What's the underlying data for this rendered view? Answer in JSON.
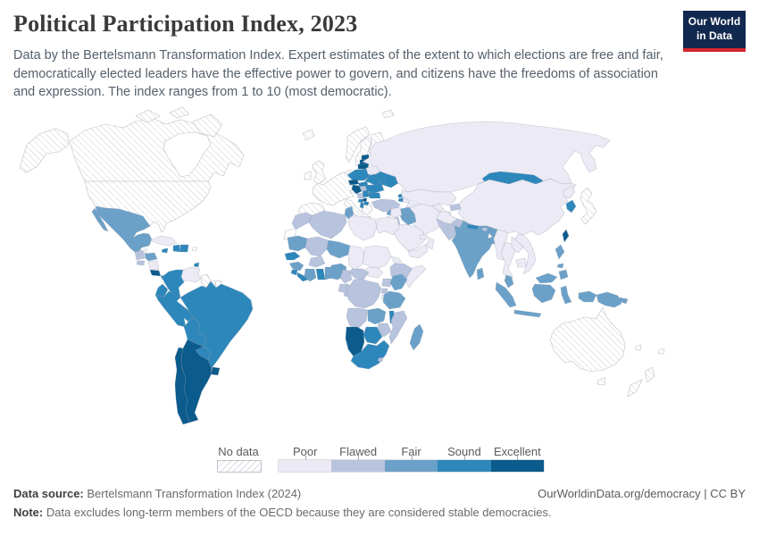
{
  "header": {
    "title": "Political Participation Index, 2023",
    "subtitle": "Data by the Bertelsmann Transformation Index. Expert estimates of the extent to which elections are free and fair, democratically elected leaders have the effective power to govern, and citizens have the freedoms of association and expression. The index ranges from 1 to 10 (most democratic).",
    "logo": {
      "line1": "Our World",
      "line2": "in Data",
      "bg_color": "#12294f",
      "accent_color": "#d2262f"
    }
  },
  "legend": {
    "no_data_label": "No data",
    "classes": [
      {
        "label": "Poor",
        "key": "poor",
        "color": "#ECEAF4"
      },
      {
        "label": "Flawed",
        "key": "flawed",
        "color": "#B8C3DE"
      },
      {
        "label": "Fair",
        "key": "fair",
        "color": "#6BA1C9"
      },
      {
        "label": "Sound",
        "key": "sound",
        "color": "#2D87BB"
      },
      {
        "label": "Excellent",
        "key": "excellent",
        "color": "#0B5B8C"
      }
    ]
  },
  "footer": {
    "source_label": "Data source:",
    "source_text": " Bertelsmann Transformation Index (2024)",
    "note_label": "Note:",
    "note_text": " Data excludes long-term members of the OECD because they are considered stable democracies.",
    "link_text": "OurWorldinData.org/democracy",
    "separator": " | ",
    "license_text": "CC BY"
  },
  "chart_data": {
    "type": "choropleth",
    "title": "Political Participation Index, 2023",
    "year": 2023,
    "index_range": [
      1,
      10
    ],
    "categories": [
      "No data",
      "Poor",
      "Flawed",
      "Fair",
      "Sound",
      "Excellent"
    ],
    "legend_position": "bottom",
    "countries": {
      "United States": "no_data",
      "Canada": "no_data",
      "Greenland": "no_data",
      "Iceland": "no_data",
      "United Kingdom": "no_data",
      "Ireland": "no_data",
      "Norway": "no_data",
      "Sweden": "no_data",
      "Finland": "no_data",
      "Denmark": "no_data",
      "France": "no_data",
      "Germany": "no_data",
      "Spain": "no_data",
      "Portugal": "no_data",
      "Italy": "no_data",
      "Greece": "no_data",
      "Switzerland": "no_data",
      "Austria": "no_data",
      "Belgium": "no_data",
      "Netherlands": "no_data",
      "Slovenia": "no_data",
      "Israel": "no_data",
      "Japan": "no_data",
      "Australia": "no_data",
      "New Zealand": "no_data",
      "Guyana": "no_data",
      "Suriname": "no_data",
      "French Guiana": "no_data",
      "Puerto Rico": "no_data",
      "Western Sahara": "no_data",
      "Belize": "no_data",
      "Fiji": "no_data",
      "New Caledonia": "no_data",
      "Russia": "poor",
      "Belarus": "poor",
      "China": "poor",
      "North Korea": "poor",
      "Venezuela": "poor",
      "Cuba": "poor",
      "Nicaragua": "poor",
      "Libya": "poor",
      "Egypt": "poor",
      "Chad": "poor",
      "Sudan": "poor",
      "South Sudan": "poor",
      "Eritrea": "poor",
      "Somalia": "poor",
      "Burundi": "poor",
      "Saudi Arabia": "poor",
      "Yemen": "poor",
      "Oman": "poor",
      "United Arab Emirates": "poor",
      "Iran": "poor",
      "Syria": "poor",
      "Afghanistan": "poor",
      "Kazakhstan": "poor",
      "Uzbekistan": "poor",
      "Turkmenistan": "poor",
      "Tajikistan": "poor",
      "Myanmar": "poor",
      "Thailand": "poor",
      "Laos": "poor",
      "Cambodia": "poor",
      "Vietnam": "poor",
      "Azerbaijan": "poor",
      "Morocco": "flawed",
      "Algeria": "flawed",
      "Mali": "flawed",
      "Burkina Faso": "flawed",
      "Guatemala": "flawed",
      "El Salvador": "flawed",
      "Turkey": "flawed",
      "Jordan": "flawed",
      "Pakistan": "flawed",
      "Kyrgyzstan": "flawed",
      "Bhutan": "flawed",
      "Hungary": "flawed",
      "Bosnia and Herzegovina": "flawed",
      "Cameroon": "flawed",
      "Central African Republic": "flawed",
      "Gabon": "flawed",
      "Republic of the Congo": "flawed",
      "Democratic Republic of Congo": "flawed",
      "Uganda": "flawed",
      "Rwanda": "flawed",
      "Ethiopia": "flawed",
      "Angola": "flawed",
      "Mozambique": "flawed",
      "Zimbabwe": "flawed",
      "Lesotho": "flawed",
      "Mexico": "fair",
      "Honduras": "fair",
      "Mauritania": "fair",
      "Niger": "fair",
      "Nigeria": "fair",
      "Cote d'Ivoire": "fair",
      "Guinea": "fair",
      "Benin": "fair",
      "Kenya": "fair",
      "Tanzania": "fair",
      "Zambia": "fair",
      "Madagascar": "fair",
      "Tunisia": "fair",
      "Iraq": "fair",
      "Lebanon": "fair",
      "India": "fair",
      "Bangladesh": "fair",
      "Sri Lanka": "fair",
      "Malaysia": "fair",
      "Indonesia": "fair",
      "Philippines": "fair",
      "Papua New Guinea": "fair",
      "Colombia": "sound",
      "Ecuador": "sound",
      "Peru": "sound",
      "Brazil": "sound",
      "Bolivia": "sound",
      "Paraguay": "sound",
      "Panama": "sound",
      "Dominican Republic": "sound",
      "Haiti": "sound",
      "Jamaica": "sound",
      "Trinidad and Tobago": "sound",
      "Senegal": "sound",
      "Sierra Leone": "sound",
      "Liberia": "sound",
      "Ghana": "sound",
      "Malawi": "sound",
      "Botswana": "sound",
      "South Africa": "sound",
      "Poland": "sound",
      "Slovakia": "sound",
      "Serbia": "sound",
      "Montenegro": "sound",
      "Albania": "sound",
      "North Macedonia": "sound",
      "Bulgaria": "sound",
      "Romania": "sound",
      "Moldova": "sound",
      "Ukraine": "sound",
      "Georgia": "sound",
      "Armenia": "sound",
      "Mongolia": "sound",
      "South Korea": "sound",
      "Nepal": "sound",
      "Argentina": "excellent",
      "Chile": "excellent",
      "Uruguay": "excellent",
      "Costa Rica": "excellent",
      "Taiwan": "excellent",
      "Estonia": "excellent",
      "Latvia": "excellent",
      "Lithuania": "excellent",
      "Czechia": "excellent",
      "Kosovo": "excellent",
      "Croatia": "excellent",
      "Namibia": "excellent"
    }
  }
}
